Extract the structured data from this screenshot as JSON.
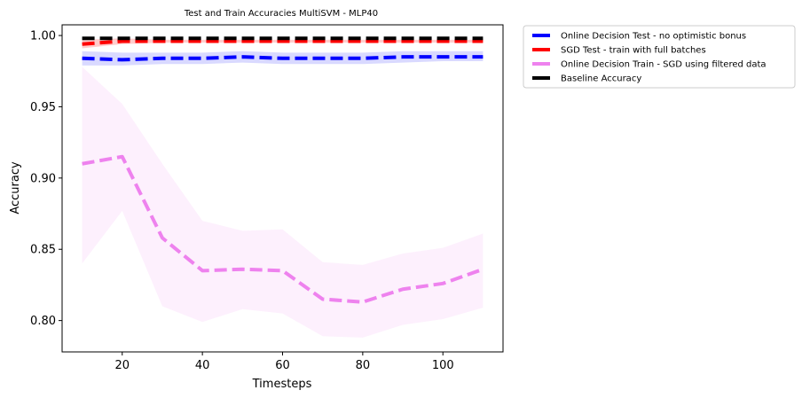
{
  "chart_data": {
    "type": "line",
    "title": "Test and Train Accuracies MultiSVM - MLP40",
    "xlabel": "Timesteps",
    "ylabel": "Accuracy",
    "xlim": [
      5,
      115
    ],
    "ylim": [
      0.778,
      1.0075
    ],
    "xticks": [
      20,
      40,
      60,
      80,
      100
    ],
    "yticks": [
      0.8,
      0.85,
      0.9,
      0.95,
      1.0
    ],
    "grid": false,
    "legend_position": "outside-upper-right",
    "x": [
      10,
      20,
      30,
      40,
      50,
      60,
      70,
      80,
      90,
      100,
      110
    ],
    "series": [
      {
        "name": "Online Decision Test - no optimistic bonus",
        "color": "#0000ff",
        "values": [
          0.984,
          0.983,
          0.984,
          0.984,
          0.985,
          0.984,
          0.984,
          0.984,
          0.985,
          0.985,
          0.985
        ],
        "band_lower": [
          0.979,
          0.979,
          0.98,
          0.98,
          0.981,
          0.98,
          0.98,
          0.98,
          0.981,
          0.982,
          0.982
        ],
        "band_upper": [
          0.989,
          0.988,
          0.988,
          0.988,
          0.989,
          0.988,
          0.988,
          0.988,
          0.989,
          0.989,
          0.989
        ]
      },
      {
        "name": "SGD Test - train with full batches",
        "color": "#ff0000",
        "values": [
          0.994,
          0.996,
          0.996,
          0.996,
          0.996,
          0.996,
          0.996,
          0.996,
          0.996,
          0.996,
          0.996
        ],
        "band_lower": [
          0.991,
          0.994,
          0.995,
          0.995,
          0.995,
          0.995,
          0.995,
          0.995,
          0.995,
          0.995,
          0.995
        ],
        "band_upper": [
          0.997,
          0.998,
          0.997,
          0.997,
          0.997,
          0.997,
          0.997,
          0.997,
          0.997,
          0.997,
          0.997
        ]
      },
      {
        "name": "Online Decision Train - SGD using filtered data",
        "color": "#ee82ee",
        "values": [
          0.91,
          0.915,
          0.858,
          0.835,
          0.836,
          0.835,
          0.815,
          0.813,
          0.822,
          0.826,
          0.836
        ],
        "band_lower": [
          0.84,
          0.877,
          0.81,
          0.799,
          0.808,
          0.805,
          0.789,
          0.788,
          0.797,
          0.801,
          0.809
        ],
        "band_upper": [
          0.978,
          0.952,
          0.91,
          0.87,
          0.863,
          0.864,
          0.841,
          0.839,
          0.847,
          0.851,
          0.861
        ]
      },
      {
        "name": "Baseline Accuracy",
        "color": "#000000",
        "values": [
          0.998,
          0.998,
          0.998,
          0.998,
          0.998,
          0.998,
          0.998,
          0.998,
          0.998,
          0.998,
          0.998
        ]
      }
    ]
  }
}
